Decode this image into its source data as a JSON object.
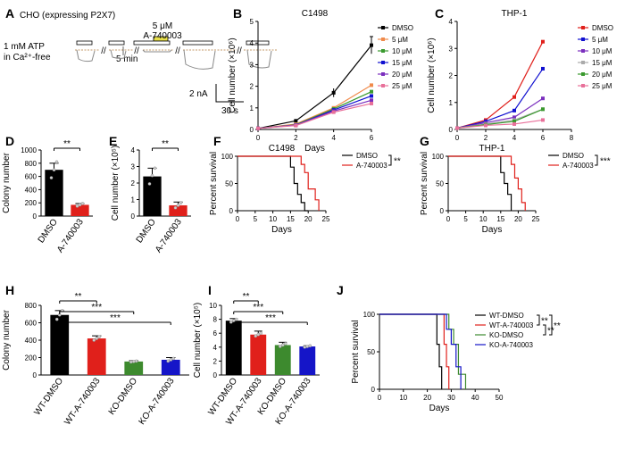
{
  "colors": {
    "black": "#000000",
    "red": "#e0201b",
    "orange": "#f08a4b",
    "green": "#3a9a2e",
    "blue": "#1010d0",
    "purple": "#7b2fbe",
    "pink": "#e8709a",
    "ko_green": "#3d8a2e",
    "ko_blue": "#1515c8",
    "trace": "#888888",
    "drug_bar": "#e8e04a"
  },
  "panel_a": {
    "letter": "A",
    "title": "CHO (expressing P2X7)",
    "atp_label_1": "1 mM ATP",
    "atp_label_2": "in Ca²⁺-free",
    "drug_label_1": "5 μM",
    "drug_label_2": "A-740003",
    "time_label": "5 min",
    "scale_current": "2 nA",
    "scale_time": "30 s"
  },
  "chart_data": [
    {
      "id": "B",
      "type": "line",
      "title": "C1498",
      "xlabel": "Days",
      "ylabel": "Cell number (×10⁶)",
      "xlim": [
        0,
        6
      ],
      "ylim": [
        0,
        5
      ],
      "xticks": [
        0,
        2,
        4,
        6
      ],
      "yticks": [
        0,
        1,
        2,
        3,
        4,
        5
      ],
      "x": [
        0,
        2,
        4,
        6
      ],
      "series": [
        {
          "name": "DMSO",
          "color": "#000000",
          "values": [
            0.05,
            0.4,
            1.7,
            3.9
          ]
        },
        {
          "name": "5 μM",
          "color": "#f08a4b",
          "values": [
            0.05,
            0.25,
            1.0,
            2.05
          ]
        },
        {
          "name": "10 μM",
          "color": "#3a9a2e",
          "values": [
            0.05,
            0.22,
            0.95,
            1.75
          ]
        },
        {
          "name": "15 μM",
          "color": "#1010d0",
          "values": [
            0.05,
            0.2,
            0.9,
            1.55
          ]
        },
        {
          "name": "20 μM",
          "color": "#7b2fbe",
          "values": [
            0.05,
            0.2,
            0.85,
            1.35
          ]
        },
        {
          "name": "25 μM",
          "color": "#e8709a",
          "values": [
            0.05,
            0.18,
            0.8,
            1.2
          ]
        }
      ]
    },
    {
      "id": "C",
      "type": "line",
      "title": "THP-1",
      "xlabel": "",
      "ylabel": "Cell number (×10⁶)",
      "xlim": [
        0,
        8
      ],
      "ylim": [
        0,
        4
      ],
      "xticks": [
        0,
        2,
        4,
        6,
        8
      ],
      "yticks": [
        0,
        1,
        2,
        3,
        4
      ],
      "x": [
        0,
        2,
        4,
        6
      ],
      "series": [
        {
          "name": "DMSO",
          "color": "#e0201b",
          "values": [
            0.05,
            0.35,
            1.2,
            3.25
          ]
        },
        {
          "name": "5 μM",
          "color": "#1010d0",
          "values": [
            0.05,
            0.3,
            0.7,
            2.25
          ]
        },
        {
          "name": "10 μM",
          "color": "#7b2fbe",
          "values": [
            0.05,
            0.25,
            0.45,
            1.15
          ]
        },
        {
          "name": "15 μM",
          "color": "#aaaaaa",
          "values": [
            0.05,
            0.2,
            0.35,
            0.75
          ]
        },
        {
          "name": "20 μM",
          "color": "#3a9a2e",
          "values": [
            0.05,
            0.18,
            0.3,
            0.75
          ]
        },
        {
          "name": "25 μM",
          "color": "#e8709a",
          "values": [
            0.05,
            0.15,
            0.2,
            0.35
          ]
        }
      ]
    },
    {
      "id": "D",
      "type": "bar",
      "ylabel": "Colony number",
      "ylim": [
        0,
        1000
      ],
      "yticks": [
        0,
        200,
        400,
        600,
        800,
        1000
      ],
      "categories": [
        "DMSO",
        "A-740003"
      ],
      "values": [
        700,
        170
      ],
      "errors": [
        100,
        20
      ],
      "colors": [
        "#000000",
        "#e0201b"
      ],
      "points": [
        [
          580,
          700,
          820
        ],
        [
          150,
          170,
          190
        ]
      ],
      "sig": [
        {
          "from": 0,
          "to": 1,
          "label": "**"
        }
      ]
    },
    {
      "id": "E",
      "type": "bar",
      "ylabel": "Cell number (×10⁵)",
      "ylim": [
        0,
        4
      ],
      "yticks": [
        0,
        1,
        2,
        3,
        4
      ],
      "categories": [
        "DMSO",
        "A-740003"
      ],
      "values": [
        2.4,
        0.65
      ],
      "errors": [
        0.5,
        0.2
      ],
      "colors": [
        "#000000",
        "#e0201b"
      ],
      "points": [
        [
          1.95,
          2.45,
          2.9
        ],
        [
          0.5,
          0.65,
          0.8
        ]
      ],
      "sig": [
        {
          "from": 0,
          "to": 1,
          "label": "**"
        }
      ]
    },
    {
      "id": "F",
      "type": "line",
      "title": "C1498",
      "xlabel": "Days",
      "ylabel": "Percent survival",
      "xlim": [
        0,
        25
      ],
      "ylim": [
        0,
        100
      ],
      "xticks": [
        0,
        5,
        10,
        15,
        20,
        25
      ],
      "yticks": [
        0,
        50,
        100
      ],
      "steps": true,
      "sig_label": "**",
      "series": [
        {
          "name": "DMSO",
          "color": "#000000",
          "x": [
            0,
            15,
            15,
            16,
            16,
            17,
            17,
            18,
            18,
            19,
            19,
            20
          ],
          "values": [
            100,
            100,
            80,
            80,
            50,
            50,
            30,
            30,
            15,
            15,
            0,
            0
          ]
        },
        {
          "name": "A-740003",
          "color": "#e0201b",
          "x": [
            0,
            18,
            18,
            19,
            19,
            20,
            20,
            22,
            22,
            23,
            23
          ],
          "values": [
            100,
            100,
            85,
            85,
            70,
            70,
            40,
            40,
            20,
            20,
            0
          ]
        }
      ]
    },
    {
      "id": "G",
      "type": "line",
      "title": "THP-1",
      "xlabel": "Days",
      "ylabel": "Percent survival",
      "xlim": [
        0,
        25
      ],
      "ylim": [
        0,
        100
      ],
      "xticks": [
        0,
        5,
        10,
        15,
        20,
        25
      ],
      "yticks": [
        0,
        50,
        100
      ],
      "steps": true,
      "sig_label": "***",
      "series": [
        {
          "name": "DMSO",
          "color": "#000000",
          "x": [
            0,
            15,
            15,
            16,
            16,
            17,
            17,
            18,
            18
          ],
          "values": [
            100,
            100,
            70,
            70,
            50,
            50,
            30,
            30,
            0
          ]
        },
        {
          "name": "A-740003",
          "color": "#e0201b",
          "x": [
            0,
            18,
            18,
            19,
            19,
            20,
            20,
            21,
            21,
            22,
            22
          ],
          "values": [
            100,
            100,
            85,
            85,
            60,
            60,
            40,
            40,
            15,
            15,
            0
          ]
        }
      ]
    },
    {
      "id": "H",
      "type": "bar",
      "ylabel": "Colony number",
      "ylim": [
        0,
        800
      ],
      "yticks": [
        0,
        200,
        400,
        600,
        800
      ],
      "categories": [
        "WT-DMSO",
        "WT-A-740003",
        "KO-DMSO",
        "KO-A-740003"
      ],
      "values": [
        690,
        420,
        155,
        175
      ],
      "errors": [
        50,
        30,
        10,
        25
      ],
      "colors": [
        "#000000",
        "#e0201b",
        "#3d8a2e",
        "#1515c8"
      ],
      "points": [
        [
          640,
          690,
          740
        ],
        [
          400,
          420,
          440
        ],
        [
          150,
          155,
          160
        ],
        [
          160,
          175,
          190
        ]
      ],
      "sig": [
        {
          "from": 0,
          "to": 1,
          "label": "**"
        },
        {
          "from": 0,
          "to": 2,
          "label": "***"
        },
        {
          "from": 0,
          "to": 3,
          "label": "***"
        }
      ]
    },
    {
      "id": "I",
      "type": "bar",
      "ylabel": "Cell number (×10⁵)",
      "ylim": [
        0,
        10
      ],
      "yticks": [
        0,
        2,
        4,
        6,
        8,
        10
      ],
      "categories": [
        "WT-DMSO",
        "WT-A-740003",
        "KO-DMSO",
        "KO-A-740003"
      ],
      "values": [
        7.8,
        5.8,
        4.3,
        4.1
      ],
      "errors": [
        0.3,
        0.5,
        0.4,
        0.1
      ],
      "colors": [
        "#000000",
        "#e0201b",
        "#3d8a2e",
        "#1515c8"
      ],
      "points": [
        [
          7.6,
          7.8,
          8.0
        ],
        [
          5.6,
          5.8,
          6.0
        ],
        [
          4.1,
          4.3,
          4.5
        ],
        [
          4.0,
          4.1,
          4.2
        ]
      ],
      "sig": [
        {
          "from": 0,
          "to": 1,
          "label": "**"
        },
        {
          "from": 0,
          "to": 2,
          "label": "***"
        },
        {
          "from": 0,
          "to": 3,
          "label": "***"
        }
      ]
    },
    {
      "id": "J",
      "type": "line",
      "xlabel": "Days",
      "ylabel": "Percent survival",
      "xlim": [
        0,
        50
      ],
      "ylim": [
        0,
        100
      ],
      "xticks": [
        0,
        10,
        20,
        30,
        40,
        50
      ],
      "yticks": [
        0,
        50,
        100
      ],
      "steps": true,
      "sig_labels": [
        "**",
        "**",
        "**"
      ],
      "series": [
        {
          "name": "WT-DMSO",
          "color": "#000000",
          "x": [
            0,
            24,
            24,
            25,
            25,
            26,
            26
          ],
          "values": [
            100,
            100,
            60,
            60,
            30,
            30,
            0
          ]
        },
        {
          "name": "WT-A-740003",
          "color": "#e0201b",
          "x": [
            0,
            27,
            27,
            28,
            28,
            29,
            29
          ],
          "values": [
            100,
            100,
            60,
            60,
            30,
            30,
            0
          ]
        },
        {
          "name": "KO-DMSO",
          "color": "#3d8a2e",
          "x": [
            0,
            29,
            29,
            31,
            31,
            33,
            33,
            36,
            36
          ],
          "values": [
            100,
            100,
            80,
            80,
            60,
            60,
            20,
            20,
            0
          ]
        },
        {
          "name": "KO-A-740003",
          "color": "#1515c8",
          "x": [
            0,
            28,
            28,
            30,
            30,
            32,
            32,
            34,
            34
          ],
          "values": [
            100,
            100,
            80,
            80,
            60,
            60,
            30,
            30,
            0
          ]
        }
      ]
    }
  ]
}
